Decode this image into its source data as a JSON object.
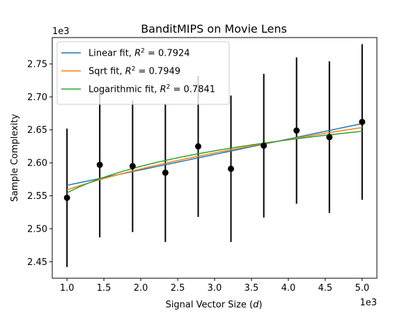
{
  "chart_data": {
    "type": "scatter",
    "title": "BanditMIPS on Movie Lens",
    "xlabel": "Signal Vector Size (d)",
    "ylabel": "Sample Complexity",
    "x_offset_label": "1e3",
    "y_offset_label": "1e3",
    "xlim": [
      0.8,
      5.2
    ],
    "ylim": [
      2.425,
      2.79
    ],
    "x_ticks": [
      "1.0",
      "1.5",
      "2.0",
      "2.5",
      "3.0",
      "3.5",
      "4.0",
      "4.5",
      "5.0"
    ],
    "y_ticks": [
      "2.45",
      "2.50",
      "2.55",
      "2.60",
      "2.65",
      "2.70",
      "2.75"
    ],
    "grid": false,
    "legend_position": "top-left",
    "points": {
      "x": [
        1.0,
        1.444,
        1.889,
        2.333,
        2.778,
        3.222,
        3.667,
        4.111,
        4.556,
        5.0
      ],
      "y": [
        2.547,
        2.597,
        2.595,
        2.585,
        2.625,
        2.591,
        2.626,
        2.649,
        2.639,
        2.662
      ],
      "error": [
        0.105,
        0.11,
        0.1,
        0.105,
        0.107,
        0.111,
        0.109,
        0.111,
        0.115,
        0.118
      ],
      "color": "#000000"
    },
    "series": [
      {
        "name": "Linear fit,  R² = 0.7924",
        "name_main": "Linear fit,  ",
        "r2_value": "0.7924",
        "model": "linear",
        "a": 2.5425,
        "b": 0.0234,
        "color": "#1f77b4"
      },
      {
        "name": "Sqrt fit,  R² = 0.7949",
        "name_main": "Sqrt fit,  ",
        "r2_value": "0.7949",
        "model": "sqrt",
        "a": 2.4825,
        "b": 0.0765,
        "color": "#ff7f0e"
      },
      {
        "name": "Logarithmic fit,  R² = 0.7841",
        "name_main": "Logarithmic fit,  ",
        "r2_value": "0.7841",
        "model": "log",
        "a": 2.5545,
        "b": 0.058,
        "color": "#2ca02c"
      }
    ]
  }
}
